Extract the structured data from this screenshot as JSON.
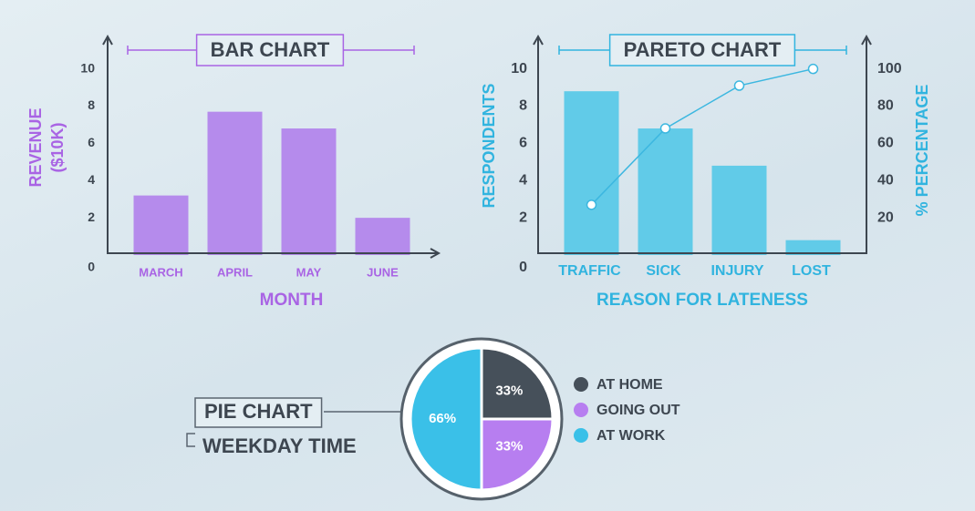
{
  "chart_data": [
    {
      "type": "bar",
      "title": "BAR CHART",
      "xlabel": "MONTH",
      "ylabel": [
        "REVENUE",
        "($10K)"
      ],
      "categories": [
        "MARCH",
        "APRIL",
        "MAY",
        "JUNE"
      ],
      "values": [
        3.2,
        7.7,
        6.8,
        2.0
      ],
      "color": "#b58bec",
      "text_color": "#a964e4",
      "ylim": [
        0,
        11.5
      ],
      "yticks": [
        0,
        2,
        4,
        6,
        8,
        10
      ]
    },
    {
      "type": "pareto",
      "title": "PARETO CHART",
      "xlabel": "REASON FOR LATENESS",
      "ylabel": "RESPONDENTS",
      "y2label": "% PERCENTAGE",
      "categories": [
        "TRAFFIC",
        "SICK",
        "INJURY",
        "LOST"
      ],
      "series": [
        {
          "color": "#61cbe8",
          "values": [
            8.8,
            6.8,
            4.8,
            0.8
          ]
        },
        {
          "color": "#3cb7e0",
          "values": [
            27,
            68,
            91,
            100
          ],
          "axis": "y2"
        }
      ],
      "text_color": "#31b4df",
      "ylim": [
        0,
        11.5
      ],
      "yticks": [
        0,
        2,
        4,
        6,
        8,
        10
      ],
      "y2lim": [
        0,
        115
      ],
      "y2ticks": [
        20,
        40,
        60,
        80,
        100
      ]
    },
    {
      "type": "pie",
      "title": "PIE CHART",
      "subtitle": "WEEKDAY TIME",
      "categories": [
        "AT HOME",
        "GOING OUT",
        "AT WORK"
      ],
      "values": [
        33,
        33,
        66
      ],
      "value_labels": [
        "33%",
        "33%",
        "66%"
      ],
      "colors": [
        "#46505a",
        "#b77ef0",
        "#3ac0e8"
      ]
    }
  ]
}
